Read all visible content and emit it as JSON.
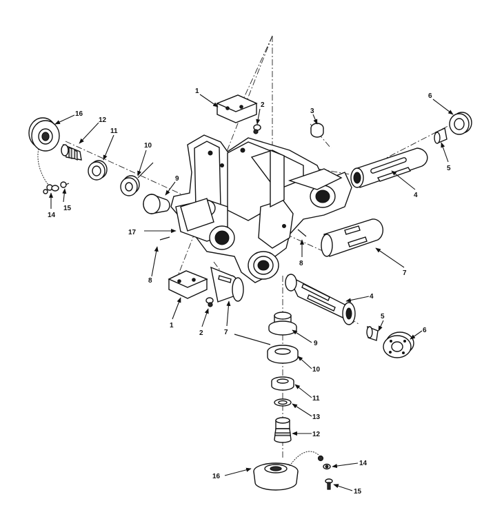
{
  "callouts": {
    "c1a": "1",
    "c1b": "1",
    "c2a": "2",
    "c2b": "2",
    "c3": "3",
    "c4a": "4",
    "c4b": "4",
    "c5a": "5",
    "c5b": "5",
    "c6a": "6",
    "c6b": "6",
    "c7a": "7",
    "c7b": "7",
    "c8a": "8",
    "c8b": "8",
    "c9a": "9",
    "c9b": "9",
    "c10a": "10",
    "c10b": "10",
    "c11a": "11",
    "c11b": "11",
    "c12a": "12",
    "c12b": "12",
    "c13": "13",
    "c14a": "14",
    "c14b": "14",
    "c15a": "15",
    "c15b": "15",
    "c16a": "16",
    "c16b": "16",
    "c17": "17"
  }
}
